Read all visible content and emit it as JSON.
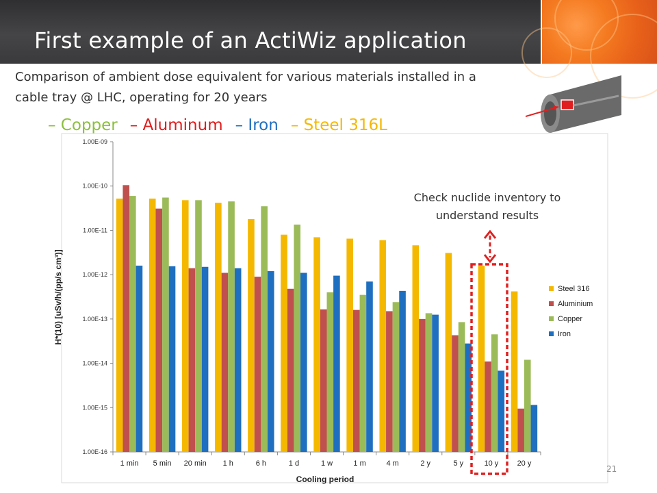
{
  "slide": {
    "title": "First example of an ActiWiz application",
    "subtitle": "Comparison of ambient dose equivalent for various materials installed in a cable tray @ LHC, operating for 20 years",
    "materials_line": [
      {
        "label": "– Copper",
        "color": "#8cbf3f"
      },
      {
        "label": "– Aluminum",
        "color": "#e01b1b"
      },
      {
        "label": "– Iron",
        "color": "#1f6fc0"
      },
      {
        "label": "– Steel 316L",
        "color": "#f5b800"
      }
    ],
    "callout": "Check nuclide inventory to understand results",
    "page_number": "21"
  },
  "chart_data": {
    "type": "bar",
    "xlabel": "Cooling period",
    "ylabel": "H*(10) [uSv/h/(pp/s cm³)]",
    "yscale": "log",
    "ylim": [
      1e-16,
      1e-09
    ],
    "yticks": [
      "1.00E-16",
      "1.00E-15",
      "1.00E-14",
      "1.00E-13",
      "1.00E-12",
      "1.00E-11",
      "1.00E-10",
      "1.00E-09"
    ],
    "categories": [
      "1 min",
      "5 min",
      "20 min",
      "1 h",
      "6 h",
      "1 d",
      "1 w",
      "1 m",
      "4 m",
      "2 y",
      "5 y",
      "10 y",
      "20 y"
    ],
    "series": [
      {
        "name": "Steel 316",
        "color": "#f5b800",
        "values": [
          5.2e-11,
          5.2e-11,
          4.8e-11,
          4.2e-11,
          1.8e-11,
          8e-12,
          7e-12,
          6.5e-12,
          6e-12,
          4.6e-12,
          3.1e-12,
          1.6e-12,
          4.2e-13
        ]
      },
      {
        "name": "Aluminium",
        "color": "#c0504d",
        "values": [
          1.05e-10,
          3.1e-11,
          1.4e-12,
          1.1e-12,
          9e-13,
          4.8e-13,
          1.65e-13,
          1.6e-13,
          1.5e-13,
          1e-13,
          4.3e-14,
          1.1e-14,
          9.5e-16
        ]
      },
      {
        "name": "Copper",
        "color": "#9bbb59",
        "values": [
          6e-11,
          5.5e-11,
          4.8e-11,
          4.5e-11,
          3.5e-11,
          1.35e-11,
          4e-13,
          3.5e-13,
          2.4e-13,
          1.35e-13,
          8.5e-14,
          4.5e-14,
          1.2e-14
        ]
      },
      {
        "name": "Iron",
        "color": "#1f6fc0",
        "values": [
          1.6e-12,
          1.55e-12,
          1.5e-12,
          1.4e-12,
          1.2e-12,
          1.1e-12,
          9.5e-13,
          7e-13,
          4.3e-13,
          1.25e-13,
          2.8e-14,
          6.8e-15,
          1.15e-15
        ]
      }
    ],
    "legend_position": "right",
    "grid": false
  }
}
